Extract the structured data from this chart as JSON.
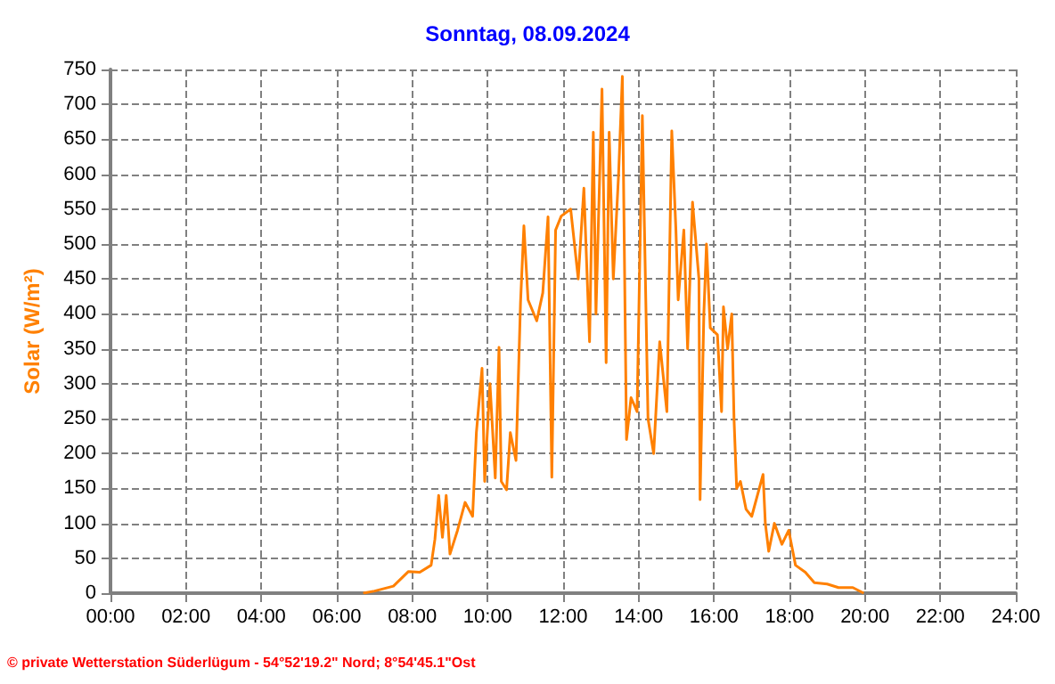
{
  "chart_data": {
    "type": "line",
    "title": "Sonntag, 08.09.2024",
    "ylabel": "Solar (W/m²)",
    "annotations": [
      "© private Wetterstation Süderlügum - 54°52'19.2\" Nord; 8°54'45.1\"Ost"
    ],
    "xlim": [
      0,
      24
    ],
    "xticks": [
      {
        "value": 0,
        "label": "00:00"
      },
      {
        "value": 2,
        "label": "02:00"
      },
      {
        "value": 4,
        "label": "04:00"
      },
      {
        "value": 6,
        "label": "06:00"
      },
      {
        "value": 8,
        "label": "08:00"
      },
      {
        "value": 10,
        "label": "10:00"
      },
      {
        "value": 12,
        "label": "12:00"
      },
      {
        "value": 14,
        "label": "14:00"
      },
      {
        "value": 16,
        "label": "16:00"
      },
      {
        "value": 18,
        "label": "18:00"
      },
      {
        "value": 20,
        "label": "20:00"
      },
      {
        "value": 22,
        "label": "22:00"
      },
      {
        "value": 24,
        "label": "24:00"
      }
    ],
    "ylim": [
      0,
      750
    ],
    "yticks": [
      0,
      50,
      100,
      150,
      200,
      250,
      300,
      350,
      400,
      450,
      500,
      550,
      600,
      650,
      700,
      750
    ],
    "grid": true,
    "marker": "none",
    "line_style": "solid",
    "series": [
      {
        "color": "#ff8000",
        "x": [
          6.7,
          7.0,
          7.5,
          7.9,
          8.2,
          8.5,
          8.6,
          8.7,
          8.8,
          8.9,
          9.0,
          9.2,
          9.4,
          9.6,
          9.7,
          9.85,
          9.92,
          10.06,
          10.2,
          10.3,
          10.36,
          10.5,
          10.6,
          10.75,
          10.87,
          10.96,
          11.07,
          11.3,
          11.46,
          11.6,
          11.7,
          11.8,
          11.95,
          12.2,
          12.4,
          12.55,
          12.7,
          12.8,
          12.87,
          13.03,
          13.14,
          13.22,
          13.33,
          13.47,
          13.57,
          13.68,
          13.8,
          13.96,
          14.1,
          14.25,
          14.4,
          14.56,
          14.75,
          14.88,
          14.99,
          15.05,
          15.2,
          15.3,
          15.43,
          15.6,
          15.63,
          15.73,
          15.8,
          15.9,
          16.09,
          16.2,
          16.25,
          16.36,
          16.47,
          16.53,
          16.6,
          16.7,
          16.85,
          17.0,
          17.3,
          17.36,
          17.45,
          17.6,
          17.8,
          17.98,
          18.16,
          18.42,
          18.66,
          19.0,
          19.3,
          19.68,
          19.97
        ],
        "values": [
          0,
          3,
          10,
          31,
          30,
          40,
          77,
          140,
          80,
          140,
          56,
          90,
          130,
          110,
          230,
          322,
          160,
          300,
          165,
          352,
          160,
          148,
          230,
          190,
          416,
          526,
          420,
          390,
          430,
          539,
          166,
          520,
          540,
          550,
          450,
          580,
          360,
          660,
          400,
          722,
          330,
          660,
          450,
          600,
          740,
          220,
          280,
          260,
          684,
          250,
          200,
          360,
          260,
          662,
          520,
          420,
          520,
          350,
          560,
          450,
          134,
          400,
          500,
          380,
          370,
          260,
          410,
          350,
          400,
          250,
          150,
          160,
          120,
          110,
          170,
          100,
          60,
          100,
          70,
          90,
          40,
          30,
          15,
          13,
          8,
          8,
          0
        ]
      }
    ]
  }
}
